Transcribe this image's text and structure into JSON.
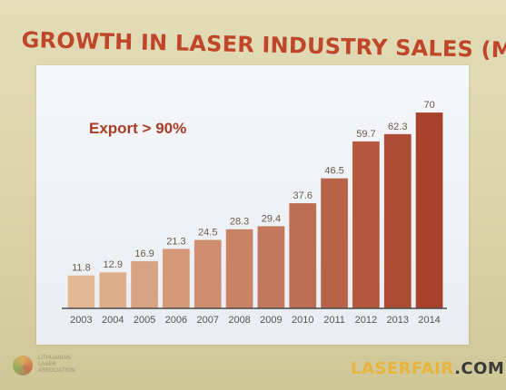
{
  "slide": {
    "title": "GROWTH IN LASER INDUSTRY SALES (M€)",
    "logo_lines": [
      "LITHUANIAN",
      "LASER",
      "ASSOCIATION"
    ]
  },
  "watermark": {
    "part1": "LASERFAIR",
    "part2": ".COM"
  },
  "chart_data": {
    "type": "bar",
    "title": "GROWTH IN LASER INDUSTRY SALES (M€)",
    "annotation": "Export > 90%",
    "categories": [
      "2003",
      "2004",
      "2005",
      "2006",
      "2007",
      "2008",
      "2009",
      "2010",
      "2011",
      "2012",
      "2013",
      "2014"
    ],
    "values": [
      11.8,
      12.9,
      16.9,
      21.3,
      24.5,
      28.3,
      29.4,
      37.6,
      46.5,
      59.7,
      62.3,
      70
    ],
    "value_labels": [
      "11.8",
      "12.9",
      "16.9",
      "21.3",
      "24.5",
      "28.3",
      "29.4",
      "37.6",
      "46.5",
      "59.7",
      "62.3",
      "70"
    ],
    "ylim": [
      0,
      70
    ],
    "grid": false,
    "colors": {
      "bar_low": "#e3b995",
      "bar_high": "#a8412a",
      "annotation": "#a93c24"
    }
  }
}
